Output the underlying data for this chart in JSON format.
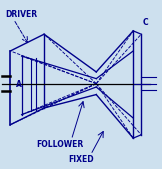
{
  "bg_color": "#cde0ee",
  "line_color": "#00008B",
  "text_color": "#00008B",
  "label_driver": "DRIVER",
  "label_follower": "FOLLOWER",
  "label_fixed": "FIXED",
  "label_a": "A",
  "label_c": "C",
  "figsize": [
    1.62,
    1.69
  ],
  "dpi": 100
}
